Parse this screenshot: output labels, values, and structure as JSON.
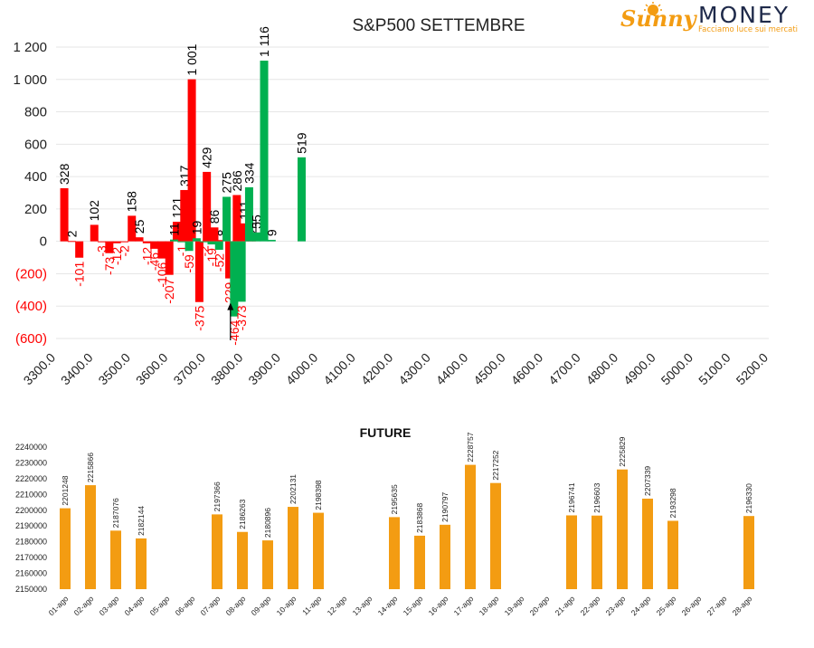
{
  "brand": {
    "name_script": "Sunny",
    "name_caps": "MONEY",
    "tagline": "Facciamo luce sui mercati",
    "colors": {
      "orange": "#f39c12",
      "navy": "#1f2a4a"
    }
  },
  "chart_data": [
    {
      "type": "bar",
      "title": "S&P500 SETTEMBRE",
      "ylim": [
        -600,
        1200
      ],
      "y_ticks": [
        -600,
        -400,
        -200,
        0,
        200,
        400,
        600,
        800,
        1000,
        1200
      ],
      "y_tick_labels": [
        "(600)",
        "(400)",
        "(200)",
        "0",
        "200",
        "400",
        "600",
        "800",
        "1 000",
        "1 200"
      ],
      "x_ticks": [
        "3300.0",
        "3400.0",
        "3500.0",
        "3600.0",
        "3700.0",
        "3800.0",
        "3900.0",
        "4000.0",
        "4100.0",
        "4200.0",
        "4300.0",
        "4400.0",
        "4500.0",
        "4600.0",
        "4700.0",
        "4800.0",
        "4900.0",
        "5000.0",
        "5100.0",
        "5200.0"
      ],
      "xlim": [
        3300,
        5200
      ],
      "grid": true,
      "colors": {
        "red": "#ff0000",
        "green": "#00b050",
        "neg_label": "#ff0000",
        "pos_label": "#000000"
      },
      "bars": [
        {
          "x": 3305,
          "value": 328,
          "color": "red",
          "label": "328"
        },
        {
          "x": 3325,
          "value": 2,
          "color": "red",
          "label": "2"
        },
        {
          "x": 3345,
          "value": -101,
          "color": "red",
          "label": "-101"
        },
        {
          "x": 3385,
          "value": 102,
          "color": "red",
          "label": "102"
        },
        {
          "x": 3405,
          "value": -3,
          "color": "red",
          "label": "-3"
        },
        {
          "x": 3425,
          "value": -73,
          "color": "red",
          "label": "-73"
        },
        {
          "x": 3445,
          "value": -12,
          "color": "red",
          "label": "-12"
        },
        {
          "x": 3465,
          "value": -2,
          "color": "red",
          "label": "-2"
        },
        {
          "x": 3485,
          "value": 158,
          "color": "red",
          "label": "158"
        },
        {
          "x": 3505,
          "value": 25,
          "color": "red",
          "label": "25"
        },
        {
          "x": 3525,
          "value": -12,
          "color": "red",
          "label": "-12"
        },
        {
          "x": 3545,
          "value": -46,
          "color": "red",
          "label": "-46"
        },
        {
          "x": 3565,
          "value": -106,
          "color": "red",
          "label": "-106"
        },
        {
          "x": 3585,
          "value": -207,
          "color": "red",
          "label": "-207"
        },
        {
          "x": 3605,
          "value": 121,
          "color": "red",
          "label": "121"
        },
        {
          "x": 3625,
          "value": 317,
          "color": "red",
          "label": "317"
        },
        {
          "x": 3645,
          "value": 1001,
          "color": "red",
          "label": "1 001"
        },
        {
          "x": 3665,
          "value": -375,
          "color": "red",
          "label": "-375"
        },
        {
          "x": 3685,
          "value": 429,
          "color": "red",
          "label": "429"
        },
        {
          "x": 3705,
          "value": 86,
          "color": "red",
          "label": "86"
        },
        {
          "x": 3725,
          "value": 8,
          "color": "red",
          "label": "8"
        },
        {
          "x": 3745,
          "value": -229,
          "color": "red",
          "label": "-229"
        },
        {
          "x": 3765,
          "value": 286,
          "color": "red",
          "label": "286"
        },
        {
          "x": 3785,
          "value": 111,
          "color": "red",
          "label": "111"
        },
        {
          "x": 3805,
          "value": 21,
          "color": "red",
          "label": "21"
        },
        {
          "x": 3605,
          "value": 11,
          "color": "green",
          "label": "11"
        },
        {
          "x": 3625,
          "value": -1,
          "color": "green",
          "label": "-1"
        },
        {
          "x": 3645,
          "value": -59,
          "color": "green",
          "label": "-59"
        },
        {
          "x": 3665,
          "value": 19,
          "color": "green",
          "label": "19"
        },
        {
          "x": 3685,
          "value": -2,
          "color": "green",
          "label": "-2"
        },
        {
          "x": 3705,
          "value": -19,
          "color": "green",
          "label": "-19"
        },
        {
          "x": 3725,
          "value": -52,
          "color": "green",
          "label": "-52"
        },
        {
          "x": 3745,
          "value": 275,
          "color": "green",
          "label": "275"
        },
        {
          "x": 3765,
          "value": -464,
          "color": "green",
          "label": "-464"
        },
        {
          "x": 3785,
          "value": -373,
          "color": "green",
          "label": "-373"
        },
        {
          "x": 3805,
          "value": 334,
          "color": "green",
          "label": "334"
        },
        {
          "x": 3825,
          "value": 55,
          "color": "green",
          "label": "55"
        },
        {
          "x": 3845,
          "value": 1116,
          "color": "green",
          "label": "1 116"
        },
        {
          "x": 3865,
          "value": 9,
          "color": "green",
          "label": "9"
        },
        {
          "x": 3945,
          "value": 519,
          "color": "green",
          "label": "519"
        }
      ],
      "marker_arrow": {
        "x": 3760,
        "from": -600,
        "to": -380
      }
    },
    {
      "type": "bar",
      "title": "FUTURE",
      "ylim": [
        2150000,
        2240000
      ],
      "y_ticks": [
        2150000,
        2160000,
        2170000,
        2180000,
        2190000,
        2200000,
        2210000,
        2220000,
        2230000,
        2240000
      ],
      "y_tick_labels": [
        "2150000",
        "2160000",
        "2170000",
        "2180000",
        "2190000",
        "2200000",
        "2210000",
        "2220000",
        "2230000",
        "2240000"
      ],
      "color": "#f39c12",
      "categories": [
        "01-ago",
        "02-ago",
        "03-ago",
        "04-ago",
        "05-ago",
        "06-ago",
        "07-ago",
        "08-ago",
        "09-ago",
        "10-ago",
        "11-ago",
        "12-ago",
        "13-ago",
        "14-ago",
        "15-ago",
        "16-ago",
        "17-ago",
        "18-ago",
        "19-ago",
        "20-ago",
        "21-ago",
        "22-ago",
        "23-ago",
        "24-ago",
        "25-ago",
        "26-ago",
        "27-ago",
        "28-ago"
      ],
      "values": [
        2201248,
        2215866,
        2187076,
        2182144,
        null,
        null,
        2197366,
        2186263,
        2180896,
        2202131,
        2198398,
        null,
        null,
        2195635,
        2183868,
        2190797,
        2228757,
        2217252,
        null,
        null,
        2196741,
        2196603,
        2225829,
        2207339,
        2193298,
        null,
        null,
        2196330
      ]
    }
  ]
}
